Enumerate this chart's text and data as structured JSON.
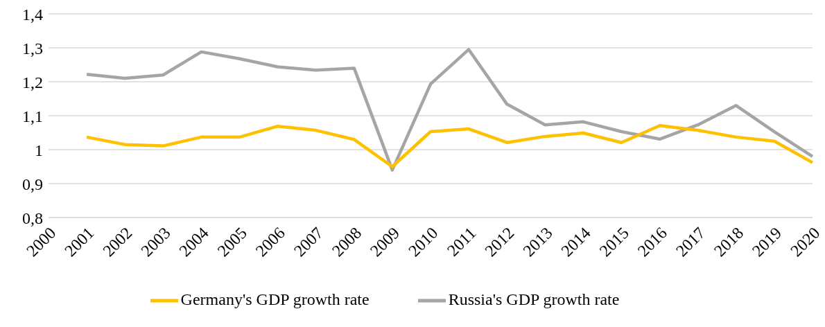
{
  "chart_data": {
    "type": "line",
    "categories": [
      "2000",
      "2001",
      "2002",
      "2003",
      "2004",
      "2005",
      "2006",
      "2007",
      "2008",
      "2009",
      "2010",
      "2011",
      "2012",
      "2013",
      "2014",
      "2015",
      "2016",
      "2017",
      "2018",
      "2019",
      "2020"
    ],
    "series": [
      {
        "name": "Russia's GDP growth rate",
        "color": "#a5a5a5",
        "values": [
          null,
          1.222,
          1.21,
          1.22,
          1.288,
          1.268,
          1.244,
          1.234,
          1.24,
          0.94,
          1.193,
          1.295,
          1.134,
          1.073,
          1.082,
          1.053,
          1.031,
          1.073,
          1.13,
          1.053,
          0.98
        ]
      },
      {
        "name": "Germany's GDP growth rate",
        "color": "#ffc000",
        "values": [
          null,
          1.037,
          1.015,
          1.011,
          1.037,
          1.037,
          1.069,
          1.057,
          1.03,
          0.95,
          1.053,
          1.061,
          1.021,
          1.039,
          1.049,
          1.021,
          1.071,
          1.057,
          1.037,
          1.025,
          0.962
        ]
      }
    ],
    "ylim": [
      0.8,
      1.4
    ],
    "yticks": [
      {
        "value": 0.8,
        "label": "0,8"
      },
      {
        "value": 0.9,
        "label": "0,9"
      },
      {
        "value": 1,
        "label": "1"
      },
      {
        "value": 1.1,
        "label": "1,1"
      },
      {
        "value": 1.2,
        "label": "1,2"
      },
      {
        "value": 1.3,
        "label": "1,3"
      },
      {
        "value": 1.4,
        "label": "1,4"
      }
    ],
    "grid": "y",
    "legend": "bottom",
    "marker": "none",
    "line_style": "solid"
  }
}
